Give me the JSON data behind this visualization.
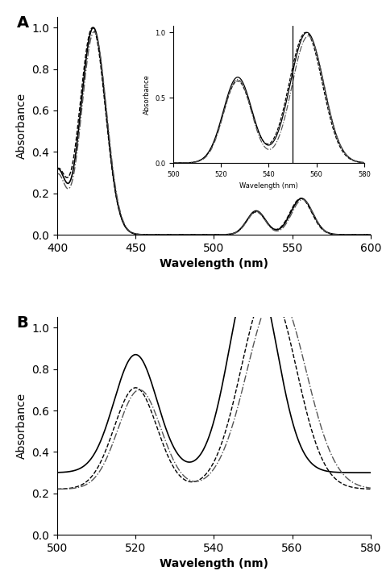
{
  "panel_A": {
    "xlim": [
      400,
      600
    ],
    "ylim": [
      0.0,
      1.05
    ],
    "xticks": [
      400,
      450,
      500,
      550,
      600
    ],
    "yticks": [
      0.0,
      0.2,
      0.4,
      0.6,
      0.8,
      1.0
    ],
    "xlabel": "Wavelength (nm)",
    "ylabel": "Absorbance",
    "label": "A"
  },
  "panel_B": {
    "xlim": [
      500,
      580
    ],
    "ylim": [
      0.0,
      1.05
    ],
    "xticks": [
      500,
      520,
      540,
      560,
      580
    ],
    "yticks": [
      0.0,
      0.2,
      0.4,
      0.6,
      0.8,
      1.0
    ],
    "xlabel": "Wavelength (nm)",
    "ylabel": "Absorbance",
    "label": "B"
  },
  "inset": {
    "xlim": [
      500,
      580
    ],
    "ylim": [
      0.0,
      1.05
    ],
    "xticks": [
      500,
      520,
      540,
      560,
      580
    ],
    "yticks": [
      0.0,
      0.5,
      1.0
    ],
    "xlabel": "Wavelength (nm)",
    "ylabel": "Absorbance",
    "vline": 550
  },
  "solid": {
    "ls": "-",
    "lw": 1.2,
    "color": "#000000"
  },
  "dashed": {
    "ls": "--",
    "lw": 1.0,
    "color": "#000000"
  },
  "dashdot": {
    "ls": "-.",
    "lw": 1.0,
    "color": "#555555"
  },
  "background_color": "#ffffff"
}
